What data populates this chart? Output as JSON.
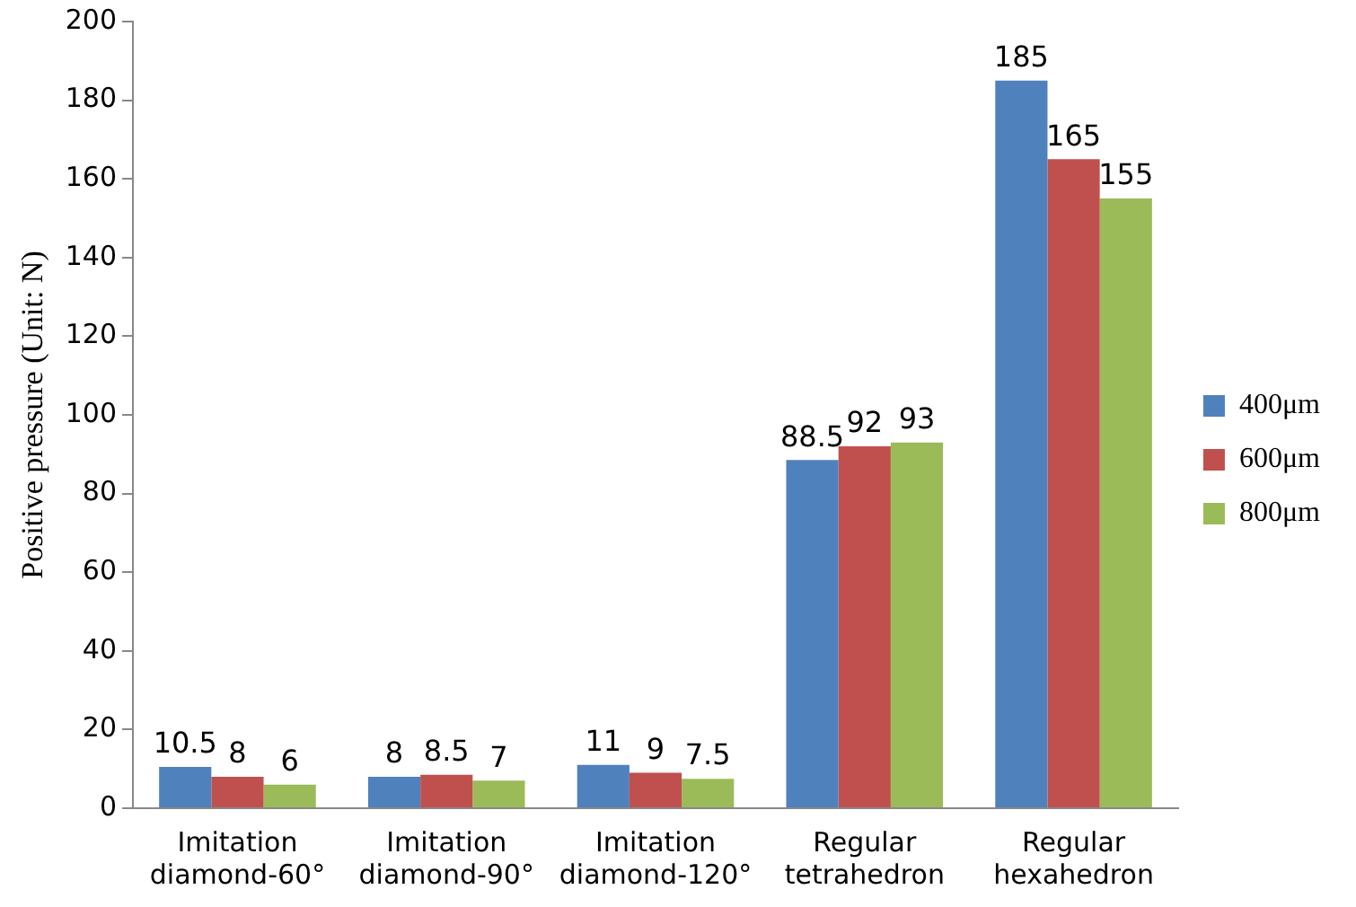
{
  "chart_data": {
    "type": "bar",
    "ylabel": "Positive pressure (Unit: N)",
    "categories": [
      "Imitation diamond-60°",
      "Imitation diamond-90°",
      "Imitation diamond-120°",
      "Regular tetrahedron",
      "Regular hexahedron"
    ],
    "series": [
      {
        "name": "400μm",
        "color": "#4f81bd",
        "values": [
          10.5,
          8,
          11,
          88.5,
          185
        ]
      },
      {
        "name": "600μm",
        "color": "#c0504d",
        "values": [
          8,
          8.5,
          9,
          92,
          165
        ]
      },
      {
        "name": "800μm",
        "color": "#9bbb59",
        "values": [
          6,
          7,
          7.5,
          93,
          155
        ]
      }
    ],
    "ylim": [
      0,
      200
    ],
    "yticks": [
      0,
      20,
      40,
      60,
      80,
      100,
      120,
      140,
      160,
      180,
      200
    ],
    "grid": false,
    "legend": "right",
    "data_labels": true
  }
}
